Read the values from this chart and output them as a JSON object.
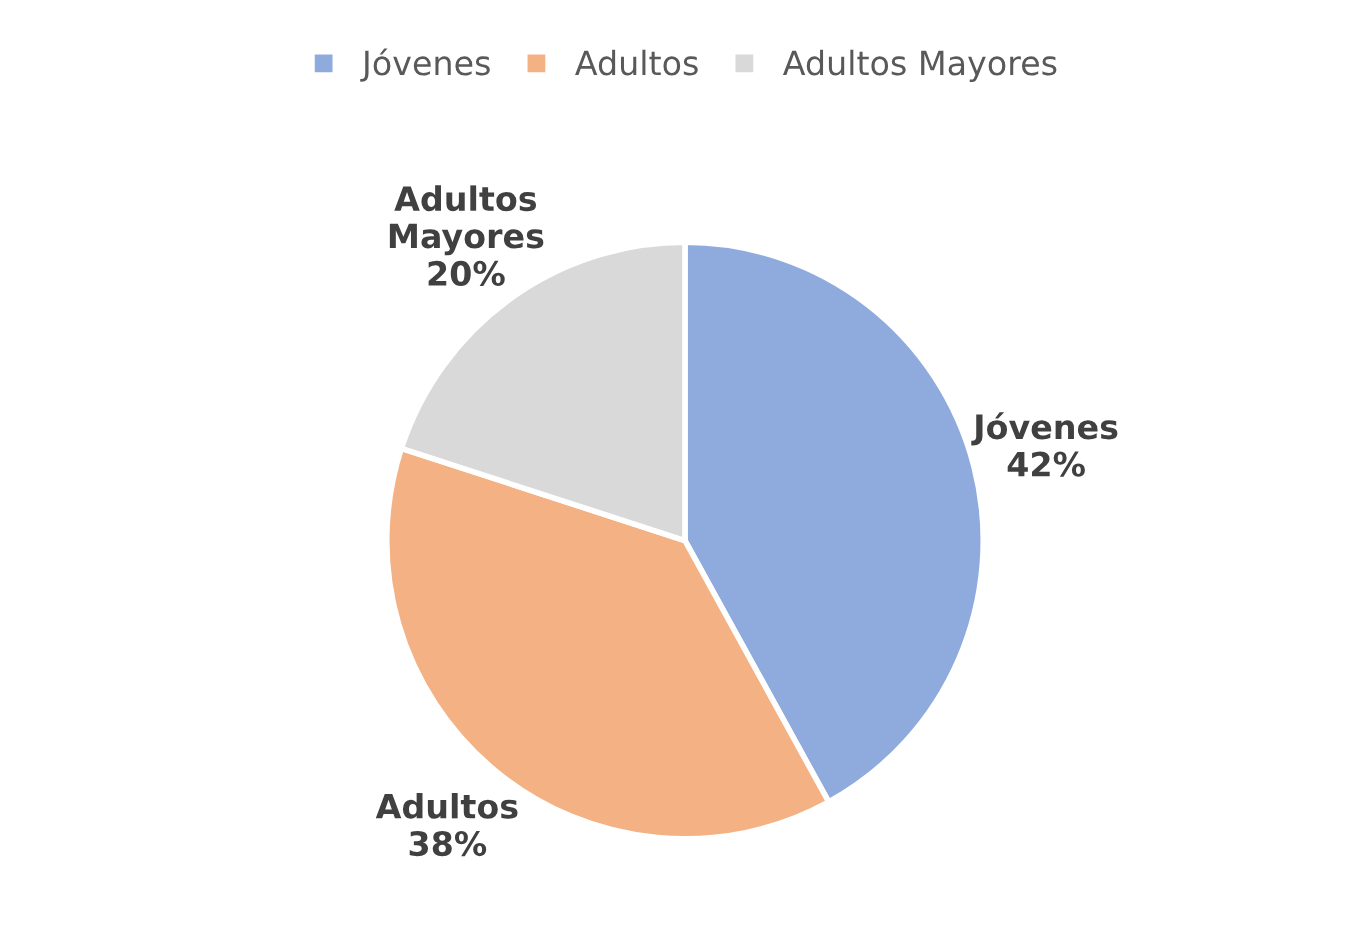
{
  "chart_data": {
    "type": "pie",
    "categories": [
      "Jóvenes",
      "Adultos",
      "Adultos Mayores"
    ],
    "values": [
      42,
      38,
      20
    ],
    "colors": [
      "#8faadc",
      "#f4b183",
      "#d9d9d9"
    ],
    "value_labels": [
      "42%",
      "38%",
      "20%"
    ],
    "legend": "top"
  }
}
